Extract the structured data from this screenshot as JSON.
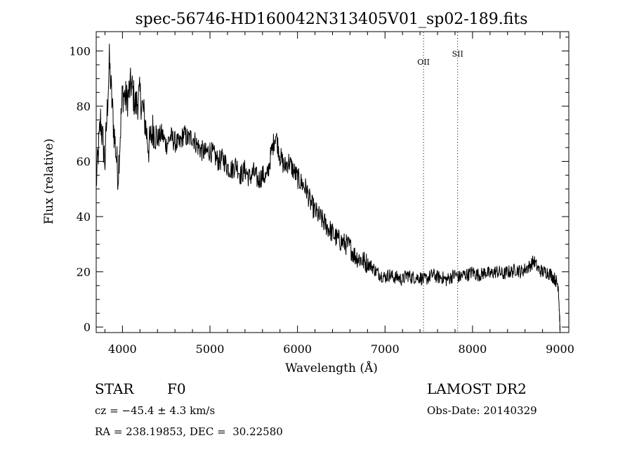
{
  "chart_data": {
    "type": "line",
    "title": "spec-56746-HD160042N313405V01_sp02-189.fits",
    "xlabel": "Wavelength (Å)",
    "ylabel": "Flux (relative)",
    "xlim": [
      3700,
      9100
    ],
    "ylim": [
      -2,
      107
    ],
    "xticks": [
      4000,
      5000,
      6000,
      7000,
      8000,
      9000
    ],
    "yticks": [
      0,
      20,
      40,
      60,
      80,
      100
    ],
    "grid": false,
    "lines": [
      {
        "label": "OII",
        "x": 7440
      },
      {
        "label": "SII",
        "x": 7830
      }
    ],
    "series": [
      {
        "x": [
          3700,
          3750,
          3800,
          3850,
          3900,
          3950,
          4000,
          4050,
          4100,
          4150,
          4200,
          4250,
          4300,
          4350,
          4400,
          4450,
          4500,
          4550,
          4600,
          4650,
          4700,
          4750,
          4800,
          4850,
          4900,
          4950,
          5000,
          5050,
          5100,
          5150,
          5200,
          5250,
          5300,
          5350,
          5400,
          5450,
          5500,
          5550,
          5600,
          5650,
          5700,
          5750,
          5800,
          5850,
          5900,
          5950,
          6000,
          6050,
          6100,
          6150,
          6200,
          6250,
          6300,
          6350,
          6400,
          6450,
          6500,
          6550,
          6600,
          6650,
          6700,
          6750,
          6800,
          6850,
          6900,
          6950,
          7000,
          7050,
          7100,
          7150,
          7200,
          7250,
          7300,
          7350,
          7400,
          7450,
          7500,
          7550,
          7600,
          7650,
          7700,
          7750,
          7800,
          7850,
          7900,
          7950,
          8000,
          8050,
          8100,
          8150,
          8200,
          8250,
          8300,
          8350,
          8400,
          8450,
          8500,
          8550,
          8600,
          8650,
          8700,
          8750,
          8800,
          8850,
          8900,
          8950,
          8980,
          9000
        ],
        "y": [
          52,
          75,
          60,
          96,
          72,
          55,
          85,
          82,
          88,
          80,
          84,
          76,
          65,
          72,
          68,
          70,
          66,
          69,
          67,
          66,
          70,
          68,
          69,
          66,
          64,
          63,
          64,
          62,
          60,
          61,
          58,
          57,
          59,
          55,
          57,
          54,
          56,
          53,
          55,
          54,
          63,
          70,
          62,
          58,
          60,
          57,
          54,
          52,
          50,
          45,
          42,
          40,
          38,
          36,
          34,
          32,
          31,
          30,
          29,
          26,
          25,
          24,
          23,
          22,
          20,
          19,
          18,
          19,
          18,
          18,
          17,
          19,
          18,
          18,
          18,
          17,
          18,
          19,
          18,
          18,
          17,
          18,
          19,
          18,
          19,
          19,
          20,
          19,
          19,
          20,
          19,
          20,
          20,
          19,
          20,
          20,
          21,
          20,
          21,
          22,
          24,
          21,
          20,
          20,
          19,
          17,
          15,
          0
        ]
      }
    ]
  },
  "info": {
    "object_type": "STAR",
    "subclass": "F0",
    "survey": "LAMOST DR2",
    "velocity": "cz = −45.4 ± 4.3 km/s",
    "obs_date": "Obs-Date: 20140329",
    "coords": "RA = 238.19853, DEC =  30.22580"
  }
}
